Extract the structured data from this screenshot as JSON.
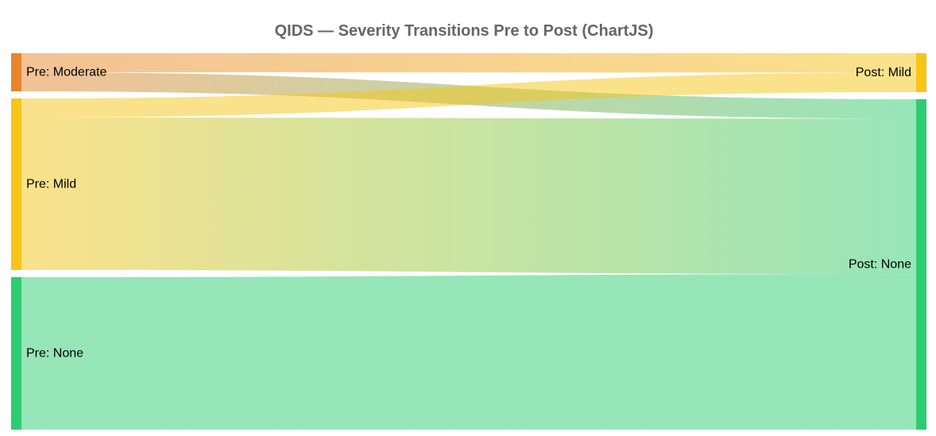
{
  "chart_data": {
    "type": "sankey",
    "title": "QIDS — Severity Transitions Pre to Post (ChartJS)",
    "nodes": [
      {
        "id": "pre_moderate",
        "label": "Pre: Moderate",
        "side": "left",
        "color": "#e8842a"
      },
      {
        "id": "pre_mild",
        "label": "Pre: Mild",
        "side": "left",
        "color": "#f5c518"
      },
      {
        "id": "pre_none",
        "label": "Pre: None",
        "side": "left",
        "color": "#2ecc71"
      },
      {
        "id": "post_mild",
        "label": "Post: Mild",
        "side": "right",
        "color": "#f5c518"
      },
      {
        "id": "post_none",
        "label": "Post: None",
        "side": "right",
        "color": "#2ecc71"
      }
    ],
    "flows": [
      {
        "from": "pre_moderate",
        "to": "post_mild",
        "value": 1
      },
      {
        "from": "pre_moderate",
        "to": "post_none",
        "value": 1
      },
      {
        "from": "pre_mild",
        "to": "post_mild",
        "value": 1
      },
      {
        "from": "pre_mild",
        "to": "post_none",
        "value": 8
      },
      {
        "from": "pre_none",
        "to": "post_none",
        "value": 8
      }
    ]
  }
}
